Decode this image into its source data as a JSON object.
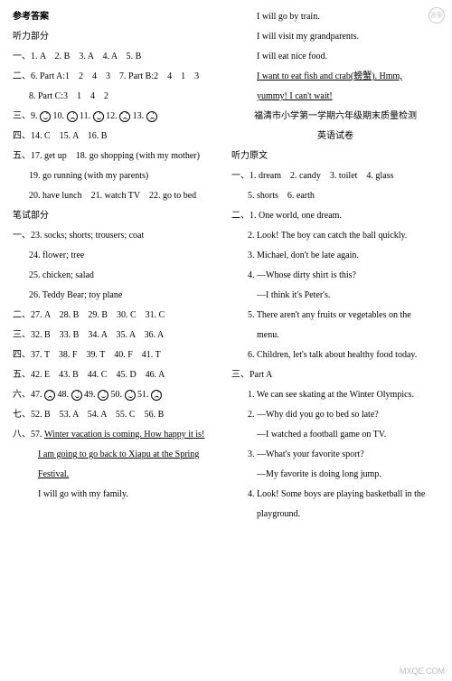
{
  "left": {
    "title1": "参考答案",
    "title2": "听力部分",
    "l1": "一、1. A　2. B　3. A　4. A　5. B",
    "l2": "二、6. Part A:1　2　4　3　7. Part B:2　4　1　3",
    "l2b": "8. Part C:3　1　4　2",
    "l3a": "三、9.",
    "l3b": "10.",
    "l3c": "11.",
    "l3d": "12.",
    "l3e": "13.",
    "l4": "四、14. C　15. A　16. B",
    "l5": "五、17. get up　18. go shopping (with my mother)",
    "l5b": "19. go running (with my parents)",
    "l5c": "20. have lunch　21. watch TV　22. go to bed",
    "title3": "笔试部分",
    "l6": "一、23. socks; shorts; trousers; coat",
    "l6b": "24. flower; tree",
    "l6c": "25. chicken; salad",
    "l6d": "26. Teddy Bear; toy plane",
    "l7": "二、27. A　28. B　29. B　30. C　31. C",
    "l8": "三、32. B　33. B　34. A　35. A　36. A",
    "l9": "四、37. T　38. F　39. T　40. F　41. T",
    "l10": "五、42. E　43. B　44. C　45. D　46. A",
    "l11a": "六、47.",
    "l11b": "48.",
    "l11c": "49.",
    "l11d": "50.",
    "l11e": "51.",
    "l12": "七、52. B　53. A　54. A　55. C　56. B",
    "l13a": "八、57.",
    "l13b": "Winter vacation is coming. How happy it is!",
    "l13c": "I am going to go back to Xiapu at the Spring",
    "l13d": "Festival.",
    "l13e": "I will go with my family."
  },
  "right": {
    "r1": "I will go by train.",
    "r2": "I will visit my grandparents.",
    "r3": "I will eat nice food.",
    "r4": "I want to eat fish and crab(螃蟹). Hmm, ",
    "r4b": "yummy! I can't wait!",
    "title1": "福清市小学第一学期六年级期末质量检测",
    "title2": "英语试卷",
    "title3": "听力原文",
    "r5": "一、1. dream　2. candy　3. toilet　4. glass",
    "r5b": "5. shorts　6. earth",
    "r6": "二、1. One world, one dream.",
    "r6b": "2. Look! The boy can catch the ball quickly.",
    "r6c": "3. Michael, don't be late again.",
    "r6d": "4. —Whose dirty shirt is this?",
    "r6e": "—I think it's Peter's.",
    "r6f": "5. There aren't any fruits or vegetables on the",
    "r6g": "menu.",
    "r6h": "6. Children, let's talk about healthy food today.",
    "r7": "三、Part A",
    "r7a": "1. We can see skating at the Winter Olympics.",
    "r7b": "2. —Why did you go to bed so late?",
    "r7c": "—I watched a football game on TV.",
    "r7d": "3. —What's your favorite sport?",
    "r7e": "—My favorite is doing long jump.",
    "r7f": "4. Look! Some boys are playing basketball in the",
    "r7g": "playground."
  },
  "watermark": "MXQE.COM",
  "corner": "答案"
}
